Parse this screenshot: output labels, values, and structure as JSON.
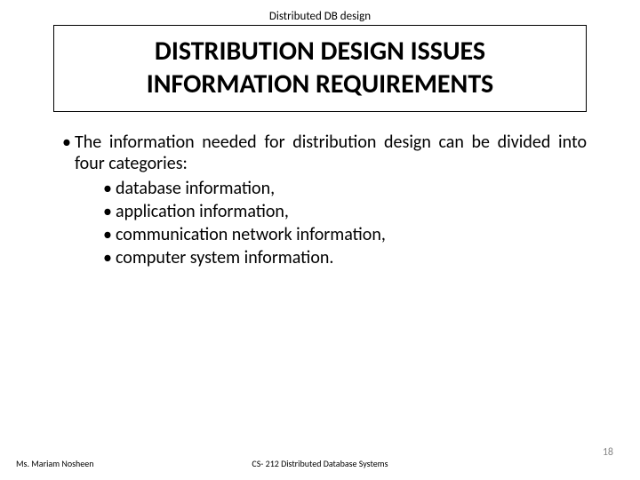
{
  "header": {
    "label": "Distributed DB design"
  },
  "title": {
    "line1": "DISTRIBUTION DESIGN ISSUES",
    "line2": "INFORMATION REQUIREMENTS",
    "fontsize": 30,
    "fontweight": "700",
    "border_color": "#000000"
  },
  "body": {
    "lead": "The information needed for distribution design can be divided into four categories:",
    "lead_fontsize": 20,
    "sub_fontsize": 20,
    "items": [
      "database information,",
      "application information,",
      "communication network information,",
      "computer system information."
    ]
  },
  "footer": {
    "left": "Ms. Mariam Nosheen",
    "center": "CS- 212 Distributed Database Systems",
    "page": "18"
  },
  "colors": {
    "background": "#ffffff",
    "text": "#000000",
    "page_number": "#888888"
  }
}
